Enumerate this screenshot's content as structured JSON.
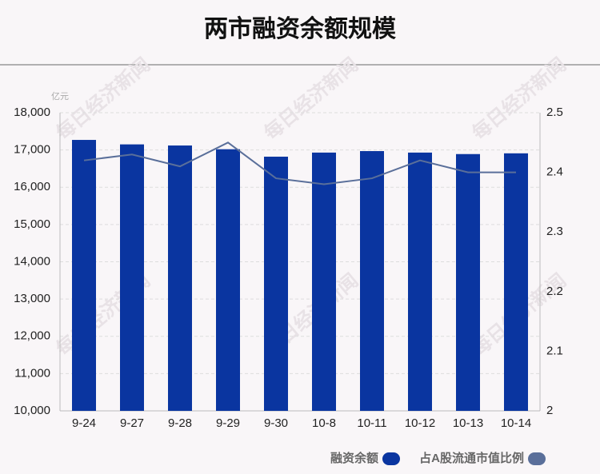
{
  "chart_data": {
    "type": "bar",
    "title": "两市融资余额规模",
    "y_unit": "亿元",
    "watermark": "每日经济新闻",
    "categories": [
      "9-24",
      "9-27",
      "9-28",
      "9-29",
      "9-30",
      "10-8",
      "10-11",
      "10-12",
      "10-13",
      "10-14"
    ],
    "series": [
      {
        "name": "融资余额",
        "type": "bar",
        "color": "#0a35a0",
        "values": [
          17270,
          17150,
          17120,
          17020,
          16820,
          16930,
          16970,
          16930,
          16890,
          16910
        ]
      },
      {
        "name": "占A股流通市值比例",
        "type": "line",
        "axis": "y2",
        "color": "#5a6f9a",
        "values": [
          2.42,
          2.43,
          2.41,
          2.45,
          2.39,
          2.38,
          2.39,
          2.42,
          2.4,
          2.4
        ]
      }
    ],
    "ylim": [
      10000,
      18000
    ],
    "yticks": [
      {
        "value": 10000,
        "label": "10,000"
      },
      {
        "value": 11000,
        "label": "11,000"
      },
      {
        "value": 12000,
        "label": "12,000"
      },
      {
        "value": 13000,
        "label": "13,000"
      },
      {
        "value": 14000,
        "label": "14,000"
      },
      {
        "value": 15000,
        "label": "15,000"
      },
      {
        "value": 16000,
        "label": "16,000"
      },
      {
        "value": 17000,
        "label": "17,000"
      },
      {
        "value": 18000,
        "label": "18,000"
      }
    ],
    "y2lim": [
      2,
      2.5
    ],
    "y2ticks": [
      2,
      2.1,
      2.2,
      2.3,
      2.4,
      2.5
    ],
    "grid": true,
    "legend": "bottom-right"
  }
}
